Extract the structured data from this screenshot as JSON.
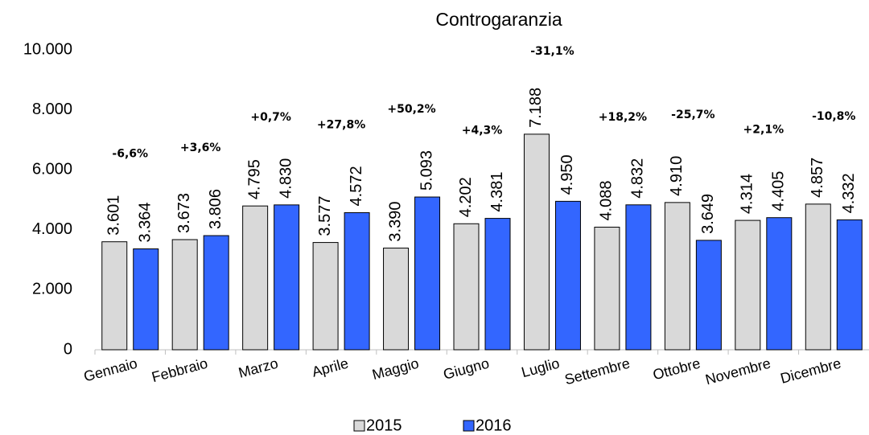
{
  "chart_data": {
    "type": "bar",
    "title": "Controgaranzia",
    "categories": [
      "Gennaio",
      "Febbraio",
      "Marzo",
      "Aprile",
      "Maggio",
      "Giugno",
      "Luglio",
      "Settembre",
      "Ottobre",
      "Novembre",
      "Dicembre"
    ],
    "series": [
      {
        "name": "2015",
        "color": "#d9d9d9",
        "values": [
          3601,
          3673,
          4795,
          3577,
          3390,
          4202,
          7188,
          4088,
          4910,
          4314,
          4857
        ],
        "value_labels": [
          "3.601",
          "3.673",
          "4.795",
          "3.577",
          "3.390",
          "4.202",
          "7.188",
          "4.088",
          "4.910",
          "4.314",
          "4.857"
        ]
      },
      {
        "name": "2016",
        "color": "#3366ff",
        "values": [
          3364,
          3806,
          4830,
          4572,
          5093,
          4381,
          4950,
          4832,
          3649,
          4405,
          4332
        ],
        "value_labels": [
          "3.364",
          "3.806",
          "4.830",
          "4.572",
          "5.093",
          "4.381",
          "4.950",
          "4.832",
          "3.649",
          "4.405",
          "4.332"
        ]
      }
    ],
    "annotations": [
      "-6,6%",
      "+3,6%",
      "+0,7%",
      "+27,8%",
      "+50,2%",
      "+4,3%",
      "-31,1%",
      "+18,2%",
      "-25,7%",
      "+2,1%",
      "-10,8%"
    ],
    "ylim": [
      0,
      10000
    ],
    "yticks": [
      0,
      {
        "value": 2000,
        "label": "2.000"
      },
      {
        "value": 4000,
        "label": "4.000"
      },
      {
        "value": 6000,
        "label": "6.000"
      },
      {
        "value": 8000,
        "label": "8.000"
      },
      {
        "value": 10000,
        "label": "10.000"
      }
    ],
    "legend": "bottom"
  }
}
